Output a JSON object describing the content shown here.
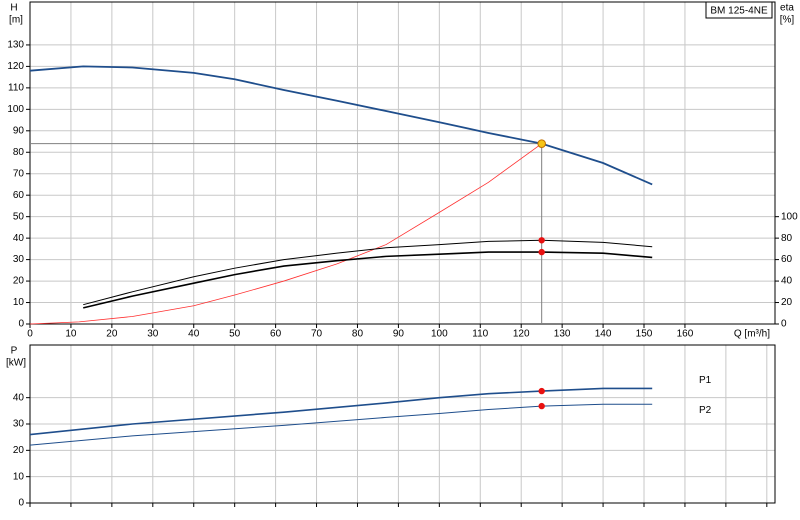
{
  "chart_data": [
    {
      "type": "line",
      "title": "BM 125-4NE",
      "ylabel": "H",
      "yunit": "[m]",
      "y2label": "eta",
      "y2unit": "[%]",
      "xlabel": "Q [m³/h]",
      "xlim": [
        0,
        182
      ],
      "xticks": [
        0,
        10,
        20,
        30,
        40,
        50,
        60,
        70,
        80,
        90,
        100,
        110,
        120,
        130,
        140,
        150,
        160
      ],
      "ylim": [
        0,
        150
      ],
      "yticks": [
        0,
        10,
        20,
        30,
        40,
        50,
        60,
        70,
        80,
        90,
        100,
        110,
        120,
        130
      ],
      "y2lim": [
        0,
        300
      ],
      "y2ticks": [
        0,
        20,
        40,
        60,
        80,
        100
      ],
      "grid": true,
      "operating_point": {
        "x": 125,
        "y": 84
      },
      "marker_color": "#e81010",
      "operating_color": "#f5c518",
      "guide_color": "#808080",
      "series": [
        {
          "color": "#1f4e8c",
          "width": 1.8,
          "x": [
            0,
            13,
            25,
            40,
            50,
            62,
            75,
            90,
            100,
            112,
            125,
            140,
            152
          ],
          "values": [
            118,
            120,
            119.5,
            117,
            114,
            109,
            104,
            98,
            94,
            89,
            84,
            75,
            65
          ]
        },
        {
          "color": "#ff3030",
          "width": 0.8,
          "x": [
            0,
            12,
            25,
            40,
            50,
            62,
            75,
            87,
            100,
            112,
            125
          ],
          "values": [
            0,
            1,
            3.5,
            8.5,
            13.5,
            20,
            28,
            37,
            52,
            66,
            84
          ]
        },
        {
          "color": "#000000",
          "width": 1,
          "axis": "y2",
          "x": [
            13,
            25,
            40,
            50,
            62,
            75,
            87,
            100,
            112,
            125,
            140,
            152
          ],
          "values": [
            18,
            30,
            44,
            52,
            60,
            66,
            71,
            74,
            77,
            78,
            76,
            72
          ]
        },
        {
          "color": "#000000",
          "width": 1.6,
          "axis": "y2",
          "x": [
            13,
            25,
            40,
            50,
            62,
            75,
            87,
            100,
            112,
            125,
            140,
            152
          ],
          "values": [
            15,
            26,
            38,
            46,
            54,
            59,
            63,
            65,
            67,
            67,
            66,
            62
          ]
        }
      ]
    },
    {
      "type": "line",
      "ylabel": "P",
      "yunit": "[kW]",
      "xlim": [
        0,
        182
      ],
      "xticks": [
        0,
        10,
        20,
        30,
        40,
        50,
        60,
        70,
        80,
        90,
        100,
        110,
        120,
        130,
        140,
        150,
        160,
        170,
        180
      ],
      "xtick_labels": false,
      "ylim": [
        0,
        60
      ],
      "yticks": [
        0,
        10,
        20,
        30,
        40
      ],
      "grid": true,
      "operating_point": {
        "x": 125
      },
      "marker_color": "#e81010",
      "series": [
        {
          "name": "P1",
          "color": "#1f4e8c",
          "width": 1.6,
          "x": [
            0,
            25,
            62,
            87,
            100,
            112,
            125,
            140,
            152
          ],
          "values": [
            26,
            30,
            34.5,
            38,
            40,
            41.5,
            42.5,
            43.5,
            43.5
          ]
        },
        {
          "name": "P2",
          "color": "#1f4e8c",
          "width": 1,
          "x": [
            0,
            25,
            62,
            87,
            100,
            112,
            125,
            140,
            152
          ],
          "values": [
            22,
            25.5,
            29.5,
            32.5,
            34,
            35.5,
            36.8,
            37.5,
            37.5
          ]
        }
      ]
    }
  ]
}
